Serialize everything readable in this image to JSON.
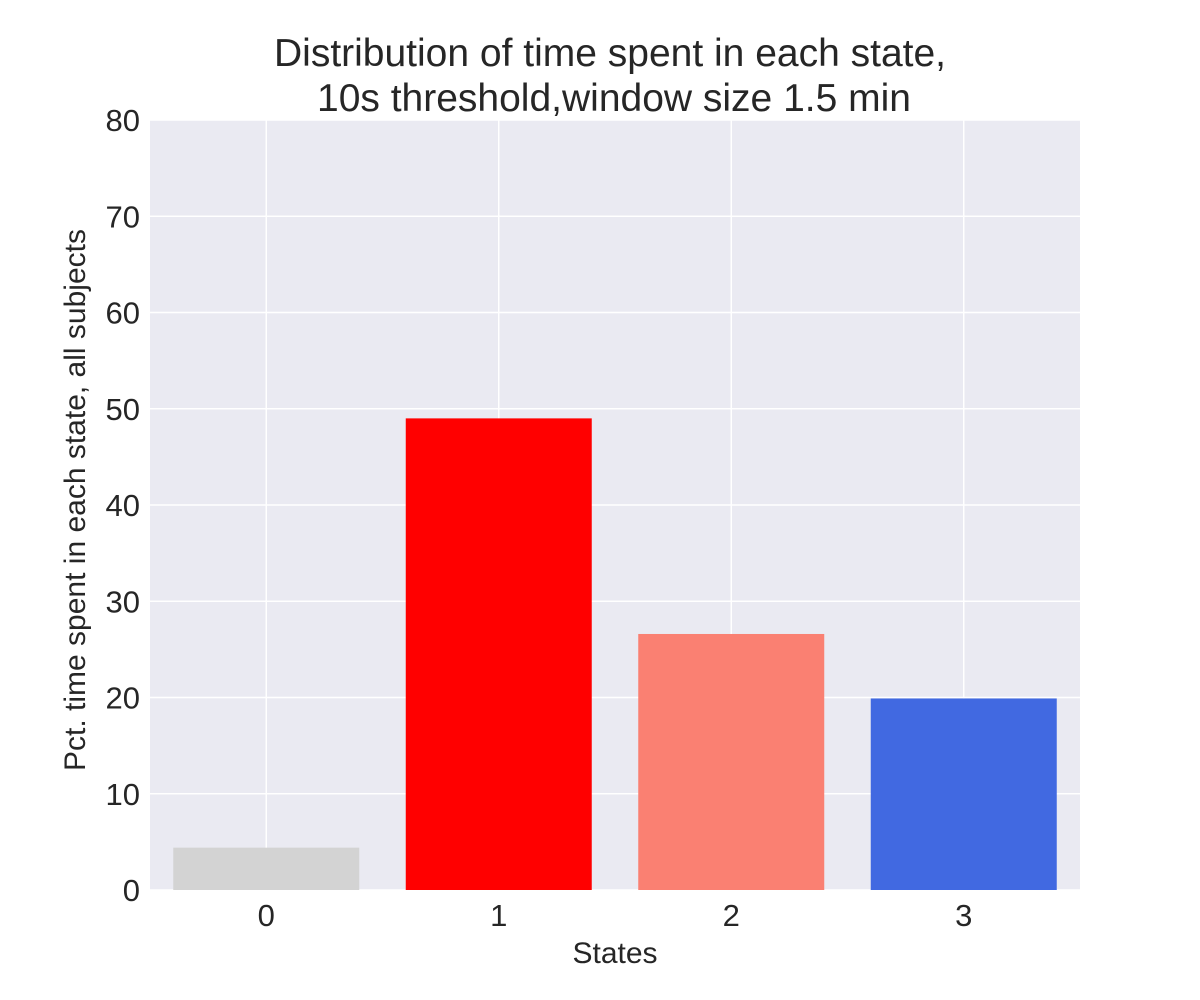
{
  "chart_data": {
    "type": "bar",
    "title": "Distribution of time spent in each state,\n10s threshold,window size 1.5 min",
    "title_lines": [
      "Distribution of time spent in each state,",
      "10s threshold,window size 1.5 min"
    ],
    "xlabel": "States",
    "ylabel": "Pct. time spent in each state, all subjects",
    "categories": [
      "0",
      "1",
      "2",
      "3"
    ],
    "values": [
      4.4,
      49.0,
      26.6,
      19.9
    ],
    "colors": [
      "#d3d3d3",
      "#ff0000",
      "#fa8072",
      "#4169e1"
    ],
    "ylim": [
      0,
      80
    ],
    "yticks": [
      0,
      10,
      20,
      30,
      40,
      50,
      60,
      70,
      80
    ],
    "grid": true,
    "plot_background": "#eaeaf2",
    "grid_color": "#ffffff"
  }
}
